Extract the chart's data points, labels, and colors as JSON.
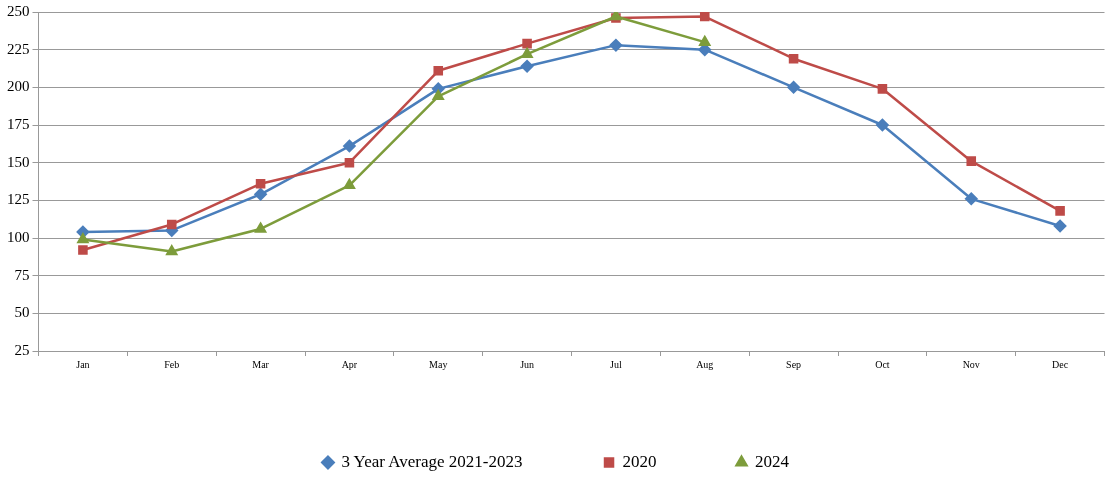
{
  "chart_data": {
    "type": "line",
    "categories": [
      "Jan",
      "Feb",
      "Mar",
      "Apr",
      "May",
      "Jun",
      "Jul",
      "Aug",
      "Sep",
      "Oct",
      "Nov",
      "Dec"
    ],
    "series": [
      {
        "name": "3 Year Average 2021-2023",
        "color": "#4a7ebb",
        "marker": "diamond",
        "values": [
          104,
          105,
          129,
          161,
          199,
          214,
          228,
          225,
          200,
          175,
          126,
          108
        ]
      },
      {
        "name": "2020",
        "color": "#be4b48",
        "marker": "square",
        "values": [
          92,
          109,
          136,
          150,
          211,
          229,
          246,
          247,
          219,
          199,
          151,
          118
        ]
      },
      {
        "name": "2024",
        "color": "#7d9c3b",
        "marker": "triangle",
        "values": [
          99,
          91,
          106,
          135,
          194,
          222,
          247,
          230,
          null,
          null,
          null,
          null
        ]
      }
    ],
    "ylim": [
      25,
      250
    ],
    "yticks": [
      25,
      50,
      75,
      100,
      125,
      150,
      175,
      200,
      225,
      250
    ],
    "grid": "y",
    "legend": "bottom",
    "line_style": "solid"
  }
}
